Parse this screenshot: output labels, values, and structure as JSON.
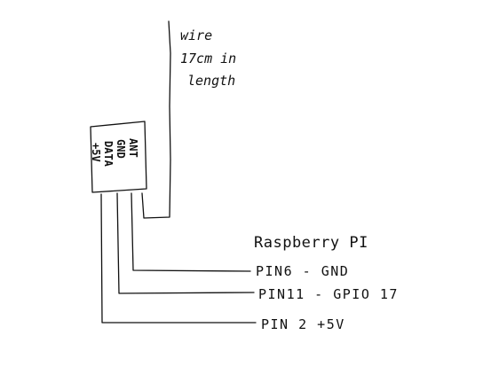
{
  "antenna_note": [
    "wire",
    "17cm in",
    "length"
  ],
  "board_title": "Raspberry PI",
  "sensor_pins": [
    {
      "text": "+5V"
    },
    {
      "text": "DATA"
    },
    {
      "text": "GND"
    },
    {
      "text": "ANT"
    }
  ],
  "connections": [
    {
      "label": "PIN6 - GND"
    },
    {
      "label": "PIN11 - GPIO 17"
    },
    {
      "label": "PIN 2 +5V"
    }
  ],
  "ink_color": "#111111"
}
